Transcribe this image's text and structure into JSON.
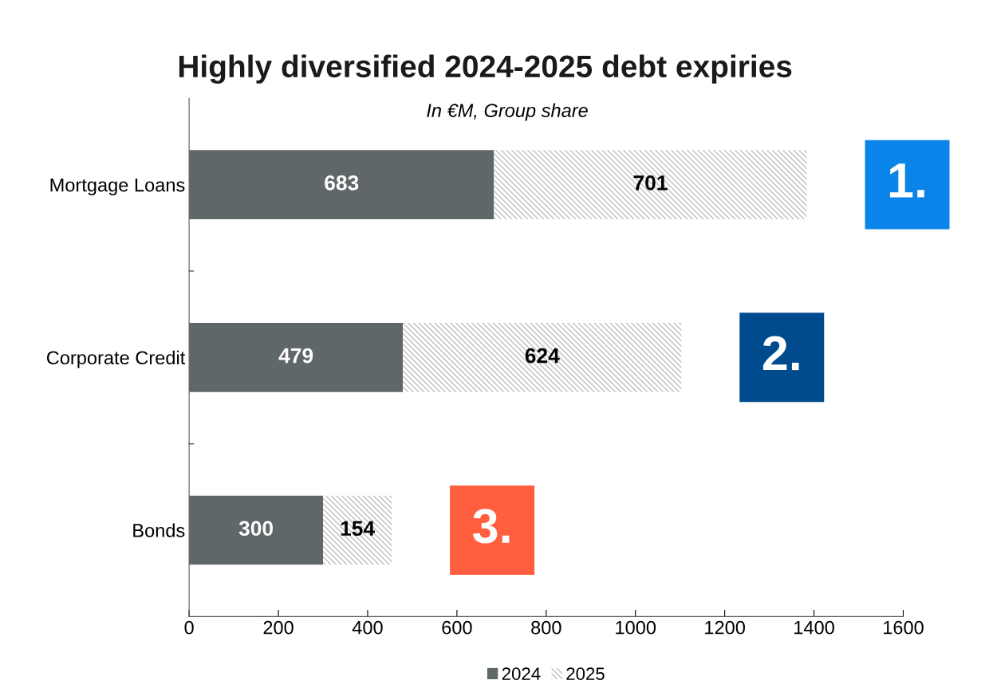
{
  "chart_data": {
    "type": "bar",
    "orientation": "horizontal",
    "stacked": true,
    "title": "Highly diversified 2024-2025 debt expiries",
    "subtitle": "In €M, Group share",
    "categories": [
      "Mortgage Loans",
      "Corporate Credit",
      "Bonds"
    ],
    "series": [
      {
        "name": "2024",
        "color": "#5f6769",
        "values": [
          683,
          479,
          300
        ]
      },
      {
        "name": "2025",
        "color": "#bfbfbf",
        "values": [
          701,
          624,
          154
        ]
      }
    ],
    "xlim": [
      0,
      1600
    ],
    "xticks": [
      0,
      200,
      400,
      600,
      800,
      1000,
      1200,
      1400,
      1600
    ],
    "data_labels": true,
    "grid": false,
    "legend": "bottom",
    "annotations": [
      "1.",
      "2.",
      "3."
    ]
  }
}
